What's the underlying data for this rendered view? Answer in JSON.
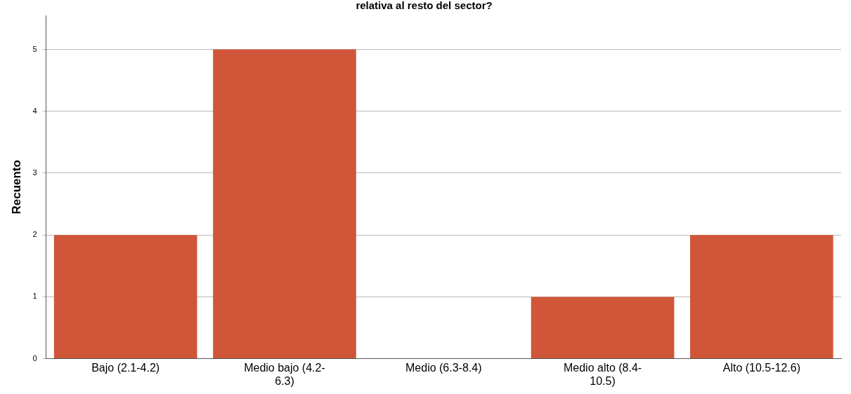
{
  "chart_data": {
    "type": "bar",
    "title": "relativa al resto del sector?",
    "ylabel": "Recuento",
    "categories": [
      "Bajo (2.1-4.2)",
      "Medio bajo (4.2-6.3)",
      "Medio (6.3-8.4)",
      "Medio alto (8.4-10.5)",
      "Alto (10.5-12.6)"
    ],
    "values": [
      2,
      5,
      0,
      1,
      2
    ],
    "color": "#d0563a",
    "ylim": [
      0,
      5.55
    ],
    "yticks": [
      0,
      1,
      2,
      3,
      4,
      5
    ],
    "grid": "y",
    "legend": false
  }
}
